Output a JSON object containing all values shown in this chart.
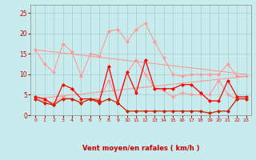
{
  "x": [
    0,
    1,
    2,
    3,
    4,
    5,
    6,
    7,
    8,
    9,
    10,
    11,
    12,
    13,
    14,
    15,
    16,
    17,
    18,
    19,
    20,
    21,
    22,
    23
  ],
  "line_pink_rafales": [
    16,
    12.5,
    10.5,
    17.5,
    15.5,
    9.5,
    15,
    14.5,
    20.5,
    21,
    18,
    21,
    22.5,
    18,
    14,
    10,
    9.5,
    10,
    10,
    10,
    10,
    12.5,
    9.5,
    9.5
  ],
  "line_pink_moyen": [
    4,
    3.5,
    3,
    4.5,
    4,
    3,
    4,
    4,
    8.5,
    3.5,
    10.5,
    13.5,
    10,
    6.5,
    6,
    4.5,
    5.5,
    5,
    5,
    5,
    8.5,
    5,
    4,
    4
  ],
  "line_red_vent": [
    4.5,
    4,
    2.5,
    7.5,
    6.5,
    4,
    4,
    3.5,
    12,
    3,
    10.5,
    5.5,
    13.5,
    6.5,
    6.5,
    6.5,
    7.5,
    7.5,
    5.5,
    3.5,
    3.5,
    8.5,
    4.5,
    4.5
  ],
  "line_red_low": [
    4,
    3,
    2.5,
    4,
    4,
    3,
    4,
    3,
    4,
    3,
    1,
    1,
    1,
    1,
    1,
    1,
    1,
    1,
    1,
    0.5,
    1,
    1,
    4,
    4
  ],
  "trend_upper_start": 16,
  "trend_upper_end": 10,
  "trend_lower_start": 4,
  "trend_lower_end": 9.5,
  "color_pink": "#ff9999",
  "color_red": "#ff0000",
  "color_darkred": "#cc2200",
  "background": "#c8eced",
  "grid_color": "#aacccc",
  "xlabel": "Vent moyen/en rafales ( km/h )",
  "xlabel_color": "#cc0000",
  "tick_color": "#cc0000",
  "ylim": [
    0,
    27
  ],
  "yticks": [
    0,
    5,
    10,
    15,
    20,
    25
  ],
  "xlim": [
    -0.5,
    23.5
  ],
  "wind_arrows": [
    "↘",
    "→",
    "↖",
    "→",
    "↘",
    "↓",
    "↗",
    "→",
    "↗",
    "↓",
    "↙",
    "↑",
    "↑",
    "↗",
    "→",
    "↘",
    "↘",
    "↓",
    "↓",
    "→",
    "⇒",
    "↑",
    "↗",
    "↘"
  ]
}
